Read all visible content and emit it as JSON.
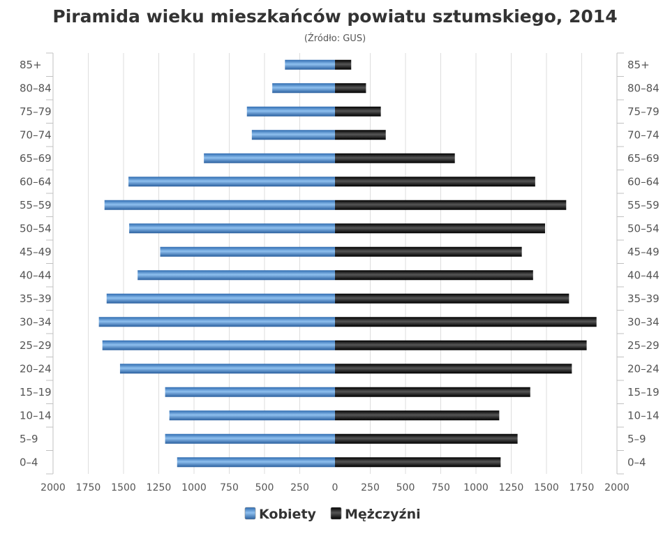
{
  "chart_data": {
    "type": "bar",
    "orientation": "horizontal-pyramid",
    "title": "Piramida wieku mieszkańców powiatu sztumskiego, 2014",
    "subtitle": "(Źródło: GUS)",
    "categories": [
      "85+",
      "80–84",
      "75–79",
      "70–74",
      "65–69",
      "60–64",
      "55–59",
      "50–54",
      "45–49",
      "40–44",
      "35–39",
      "30–34",
      "25–29",
      "20–24",
      "15–19",
      "10–14",
      "5–9",
      "0–4"
    ],
    "series": [
      {
        "name": "Kobiety",
        "side": "left",
        "color": "#3f7fc4",
        "values": [
          355,
          445,
          625,
          590,
          930,
          1465,
          1635,
          1460,
          1240,
          1400,
          1620,
          1675,
          1650,
          1525,
          1205,
          1175,
          1205,
          1120
        ]
      },
      {
        "name": "Mężczyźni",
        "side": "right",
        "color": "#1a1a1a",
        "values": [
          115,
          220,
          325,
          360,
          850,
          1420,
          1640,
          1490,
          1325,
          1405,
          1660,
          1855,
          1785,
          1680,
          1385,
          1165,
          1295,
          1175
        ]
      }
    ],
    "xlim": [
      -2000,
      2000
    ],
    "x_ticks": [
      "2000",
      "1750",
      "1500",
      "1250",
      "1000",
      "750",
      "500",
      "250",
      "0",
      "250",
      "500",
      "750",
      "1000",
      "1250",
      "1500",
      "1750",
      "2000"
    ],
    "grid": true,
    "legend_position": "bottom-center"
  }
}
